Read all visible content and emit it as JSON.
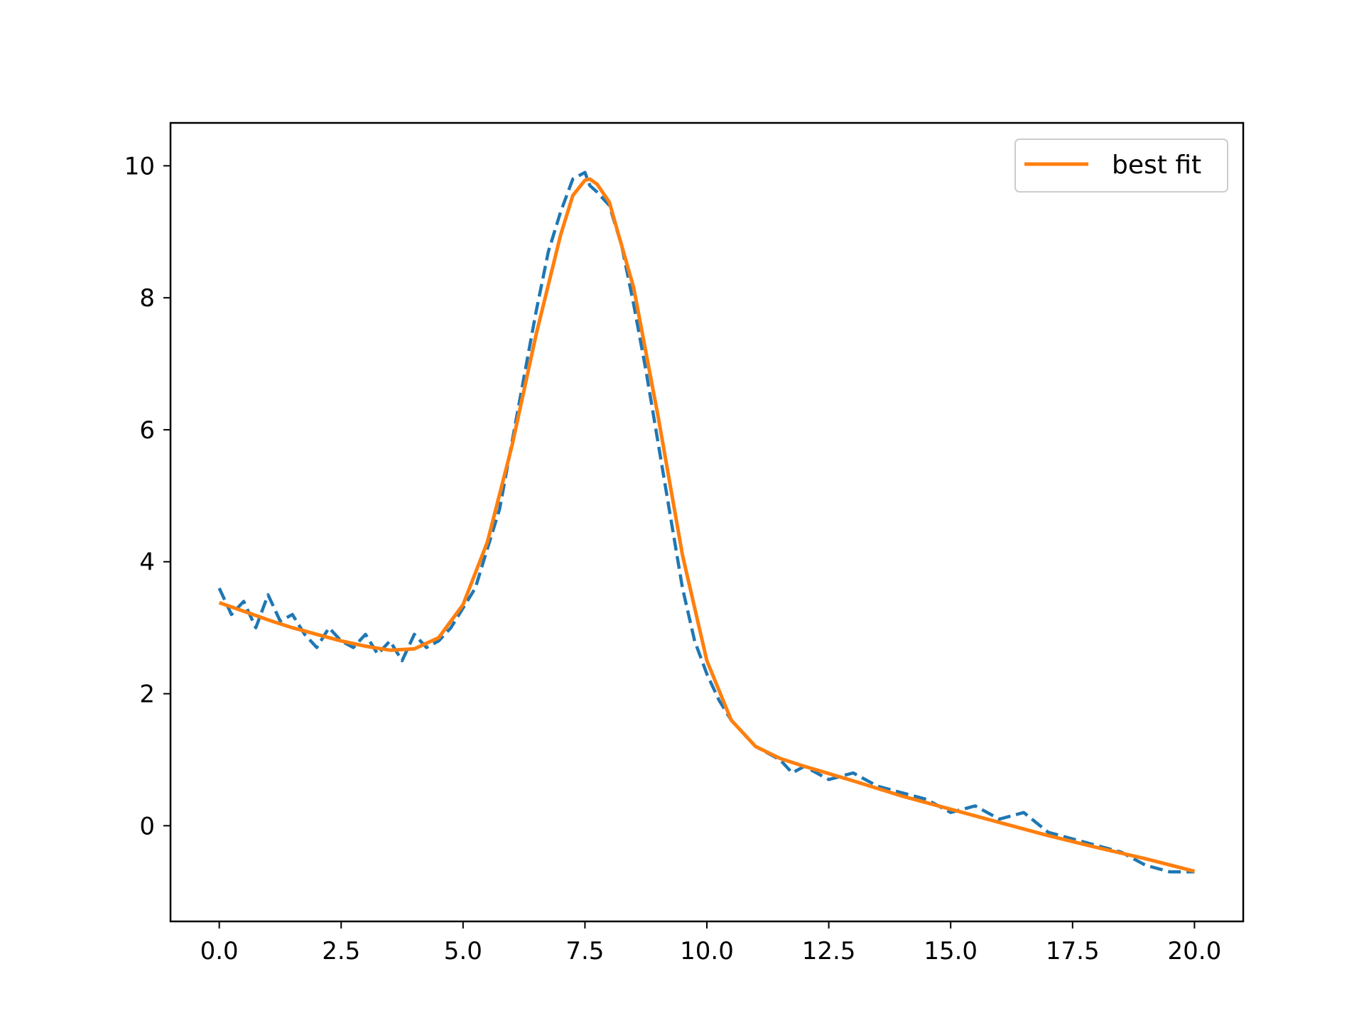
{
  "chart_data": {
    "type": "line",
    "title": "",
    "xlabel": "",
    "ylabel": "",
    "xlim": [
      -1.0,
      21.0
    ],
    "ylim": [
      -1.45,
      10.65
    ],
    "grid": false,
    "legend": {
      "placement": "top-right",
      "entries": [
        "best fit"
      ]
    },
    "x_ticks": [
      {
        "value": 0.0,
        "label": "0.0"
      },
      {
        "value": 2.5,
        "label": "2.5"
      },
      {
        "value": 5.0,
        "label": "5.0"
      },
      {
        "value": 7.5,
        "label": "7.5"
      },
      {
        "value": 10.0,
        "label": "10.0"
      },
      {
        "value": 12.5,
        "label": "12.5"
      },
      {
        "value": 15.0,
        "label": "15.0"
      },
      {
        "value": 17.5,
        "label": "17.5"
      },
      {
        "value": 20.0,
        "label": "20.0"
      }
    ],
    "y_ticks": [
      {
        "value": 0,
        "label": "0"
      },
      {
        "value": 2,
        "label": "2"
      },
      {
        "value": 4,
        "label": "4"
      },
      {
        "value": 6,
        "label": "6"
      },
      {
        "value": 8,
        "label": "8"
      },
      {
        "value": 10,
        "label": "10"
      }
    ],
    "series": [
      {
        "name": "",
        "style": "dashed",
        "color": "#1f77b4",
        "x": [
          0.0,
          0.25,
          0.5,
          0.75,
          1.0,
          1.25,
          1.5,
          1.75,
          2.0,
          2.25,
          2.5,
          2.75,
          3.0,
          3.25,
          3.5,
          3.75,
          4.0,
          4.25,
          4.5,
          4.75,
          5.0,
          5.25,
          5.5,
          5.75,
          6.0,
          6.25,
          6.5,
          6.75,
          7.0,
          7.25,
          7.5,
          7.6,
          7.75,
          8.0,
          8.25,
          8.5,
          8.75,
          9.0,
          9.25,
          9.5,
          9.75,
          10.0,
          10.25,
          10.5,
          10.75,
          11.0,
          11.25,
          11.5,
          11.75,
          12.0,
          12.5,
          13.0,
          13.5,
          14.0,
          14.5,
          15.0,
          15.5,
          16.0,
          16.5,
          17.0,
          17.5,
          18.0,
          18.5,
          19.0,
          19.5,
          20.0
        ],
        "y": [
          3.6,
          3.2,
          3.4,
          3.0,
          3.5,
          3.1,
          3.2,
          2.9,
          2.7,
          3.0,
          2.8,
          2.7,
          2.9,
          2.6,
          2.8,
          2.5,
          2.9,
          2.7,
          2.8,
          3.0,
          3.3,
          3.6,
          4.2,
          4.8,
          5.8,
          6.8,
          7.8,
          8.7,
          9.3,
          9.8,
          9.9,
          9.7,
          9.6,
          9.4,
          8.8,
          7.9,
          6.9,
          5.8,
          4.7,
          3.6,
          2.8,
          2.3,
          1.9,
          1.6,
          1.4,
          1.2,
          1.1,
          1.0,
          0.8,
          0.9,
          0.7,
          0.8,
          0.6,
          0.5,
          0.4,
          0.2,
          0.3,
          0.1,
          0.2,
          -0.1,
          -0.2,
          -0.3,
          -0.4,
          -0.6,
          -0.7,
          -0.7
        ]
      },
      {
        "name": "best fit",
        "style": "solid",
        "color": "#ff7f0e",
        "x": [
          0.0,
          0.5,
          1.0,
          1.5,
          2.0,
          2.5,
          3.0,
          3.5,
          4.0,
          4.5,
          5.0,
          5.5,
          6.0,
          6.5,
          7.0,
          7.25,
          7.5,
          7.6,
          7.75,
          8.0,
          8.5,
          9.0,
          9.5,
          10.0,
          10.5,
          11.0,
          11.5,
          12.0,
          13.0,
          14.0,
          15.0,
          16.0,
          17.0,
          18.0,
          19.0,
          20.0
        ],
        "y": [
          3.38,
          3.25,
          3.12,
          3.0,
          2.9,
          2.8,
          2.72,
          2.66,
          2.68,
          2.85,
          3.35,
          4.3,
          5.75,
          7.45,
          8.95,
          9.55,
          9.78,
          9.8,
          9.72,
          9.45,
          8.15,
          6.2,
          4.1,
          2.5,
          1.6,
          1.2,
          1.02,
          0.9,
          0.68,
          0.45,
          0.25,
          0.05,
          -0.15,
          -0.33,
          -0.5,
          -0.69
        ]
      }
    ]
  }
}
